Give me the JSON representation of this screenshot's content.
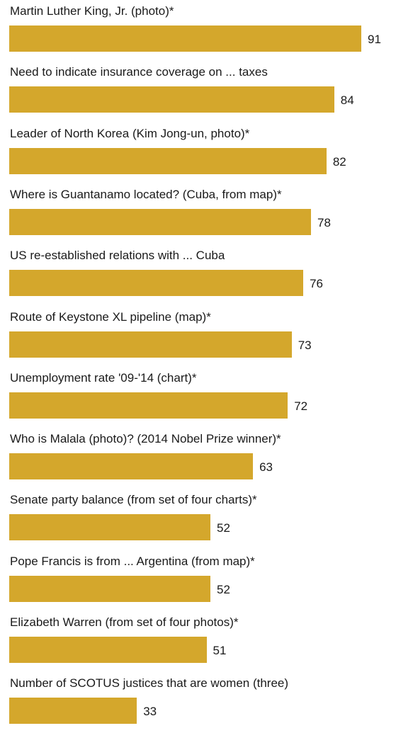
{
  "chart_data": {
    "type": "bar",
    "orientation": "horizontal",
    "categories": [
      "Martin Luther King, Jr. (photo)*",
      "Need to indicate insurance coverage on ... taxes",
      "Leader of North Korea (Kim Jong-un, photo)*",
      "Where is Guantanamo located? (Cuba, from map)*",
      "US  re-established relations with ... Cuba",
      "Route of Keystone XL pipeline (map)*",
      "Unemployment rate '09-'14 (chart)*",
      "Who is Malala (photo)? (2014 Nobel Prize winner)*",
      "Senate party balance (from set of four charts)*",
      "Pope Francis is from ... Argentina (from map)*",
      "Elizabeth Warren (from set of four photos)*",
      "Number of SCOTUS justices that are women (three)"
    ],
    "values": [
      91,
      84,
      82,
      78,
      76,
      73,
      72,
      63,
      52,
      52,
      51,
      33
    ],
    "bar_color": "#D4A72C",
    "data_labels": true,
    "grid": false
  }
}
